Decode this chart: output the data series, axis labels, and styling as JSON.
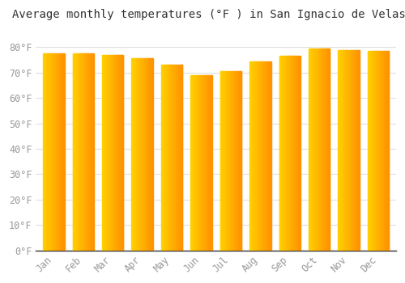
{
  "title": "Average monthly temperatures (°F ) in San Ignacio de Velasco",
  "months": [
    "Jan",
    "Feb",
    "Mar",
    "Apr",
    "May",
    "Jun",
    "Jul",
    "Aug",
    "Sep",
    "Oct",
    "Nov",
    "Dec"
  ],
  "values": [
    77.5,
    77.5,
    77,
    75.5,
    73,
    69,
    70.5,
    74.5,
    76.5,
    79.5,
    79,
    78.5
  ],
  "bar_color_left": "#FFD000",
  "bar_color_right": "#F5A000",
  "background_color": "#FFFFFF",
  "grid_color": "#E0E0E0",
  "ylim": [
    0,
    88
  ],
  "yticks": [
    0,
    10,
    20,
    30,
    40,
    50,
    60,
    70,
    80
  ],
  "ytick_labels": [
    "0°F",
    "10°F",
    "20°F",
    "30°F",
    "40°F",
    "50°F",
    "60°F",
    "70°F",
    "80°F"
  ],
  "title_fontsize": 10,
  "tick_fontsize": 8.5,
  "bar_width": 0.72,
  "tick_color": "#999999",
  "spine_color": "#333333"
}
